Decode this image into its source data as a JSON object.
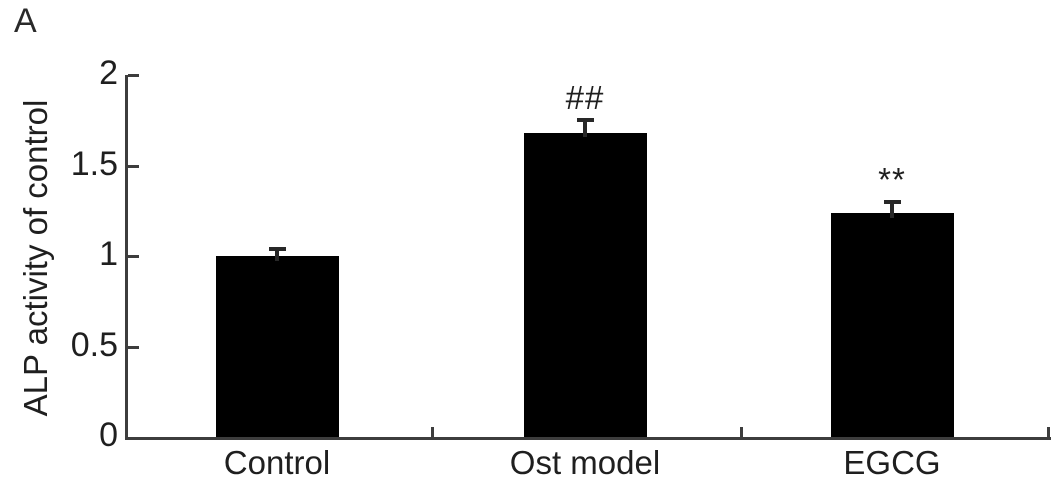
{
  "panel_label": "A",
  "chart_data": {
    "type": "bar",
    "title": "",
    "xlabel": "",
    "ylabel": "ALP activity of control",
    "categories": [
      "Control",
      "Ost model",
      "EGCG"
    ],
    "values": [
      1.0,
      1.68,
      1.24
    ],
    "errors": [
      0.05,
      0.08,
      0.07
    ],
    "annotations": [
      "",
      "##",
      "**"
    ],
    "ytick_labels": [
      "0",
      "0.5",
      "1",
      "1.5",
      "2"
    ],
    "ylim": [
      0,
      2
    ],
    "grid": false,
    "legend": "none",
    "bar_color": "#000000",
    "axis_color": "#3d3d3d",
    "text_color": "#1f1f1f",
    "background_color": "#ffffff"
  }
}
